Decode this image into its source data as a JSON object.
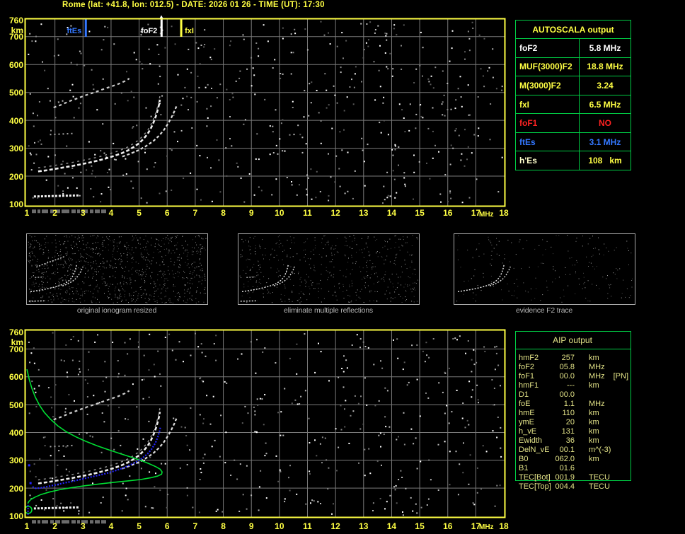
{
  "title": "Rome (lat: +41.8, lon: 012.5) - DATE: 2026 01 26 - TIME (UT): 17:30",
  "colors": {
    "axis_yellow": "#ffff44",
    "table_green": "#00cc44",
    "marker_blue": "#3377ff",
    "alarm_red": "#ff2222",
    "white": "#ffffff",
    "aip_pale_yellow": "#e4e488",
    "profile_green": "#00dd33",
    "restored_blue": "#2525ff",
    "grid_gray": "#7a7a7a",
    "caption_gray": "#b4b4b4"
  },
  "autoscala": {
    "header": "AUTOSCALA output",
    "rows": [
      {
        "label": "foF2",
        "value": "5.8 MHz",
        "color": "#ffffff"
      },
      {
        "label": "MUF(3000)F2",
        "value": "18.8 MHz",
        "color": "#ffff44"
      },
      {
        "label": "M(3000)F2",
        "value": "3.24",
        "color": "#ffff44"
      },
      {
        "label": "fxI",
        "value": "6.5 MHz",
        "color": "#ffff44"
      },
      {
        "label": "foF1",
        "value": "NO",
        "color": "#ff2222"
      },
      {
        "label": "ftEs",
        "value": "3.1 MHz",
        "color": "#3377ff"
      },
      {
        "label": "h'Es",
        "value": "108   km",
        "color": "#ffff44",
        "label_color": "#ffffcc"
      }
    ]
  },
  "aip": {
    "header": "AIP output",
    "rows": [
      {
        "label": "hmF2",
        "value": "257",
        "unit": "km",
        "extra": ""
      },
      {
        "label": "foF2",
        "value": "05.8",
        "unit": "MHz",
        "extra": ""
      },
      {
        "label": "foF1",
        "value": "00.0",
        "unit": "MHz",
        "extra": "[PN]"
      },
      {
        "label": "hmF1",
        "value": "---",
        "unit": "km",
        "extra": ""
      },
      {
        "label": "D1",
        "value": "00.0",
        "unit": "",
        "extra": ""
      },
      {
        "label": "foE",
        "value": "1.1",
        "unit": "MHz",
        "extra": ""
      },
      {
        "label": "hmE",
        "value": "110",
        "unit": "km",
        "extra": ""
      },
      {
        "label": "ymE",
        "value": "20",
        "unit": "km",
        "extra": ""
      },
      {
        "label": "h_vE",
        "value": "131",
        "unit": "km",
        "extra": ""
      },
      {
        "label": "Ewidth",
        "value": "36",
        "unit": "km",
        "extra": ""
      },
      {
        "label": "DelN_vE",
        "value": "00.1",
        "unit": "m^(-3)",
        "extra": ""
      },
      {
        "label": "B0",
        "value": "062.0",
        "unit": "km",
        "extra": ""
      },
      {
        "label": "B1",
        "value": "01.6",
        "unit": "",
        "extra": ""
      },
      {
        "label": "TEC[Bot]",
        "value": "001.9",
        "unit": "TECU",
        "extra": ""
      },
      {
        "label": "TEC[Top]",
        "value": "004.4",
        "unit": "TECU",
        "extra": ""
      }
    ]
  },
  "thumbnails": [
    {
      "caption": "original ionogram resized",
      "series": [
        "F-trace-ordinary",
        "F-trace-extraordinary",
        "multiple-reflection",
        "Es-trace",
        "Es-multiple-cluster"
      ],
      "noise": 1050,
      "seed": 111
    },
    {
      "caption": "eliminate multiple reflections",
      "series": [
        "F-trace-ordinary",
        "F-trace-extraordinary",
        "Es-trace",
        "Es-multiple-cluster"
      ],
      "noise": 520,
      "seed": 222
    },
    {
      "caption": "evidence F2 trace",
      "series": [
        "F-trace-ordinary",
        "F-trace-extraordinary"
      ],
      "noise": 200,
      "seed": 333
    }
  ],
  "chart_data": [
    {
      "type": "scatter",
      "name": "autoscaled ionogram with characteristic markers",
      "xlabel": "MHz",
      "ylabel": "km",
      "xlim": [
        1,
        18
      ],
      "ylim": [
        100,
        760
      ],
      "x_ticks": [
        "1",
        "2",
        "3",
        "4",
        "5",
        "6",
        "7",
        "8",
        "9",
        "10",
        "11",
        "12",
        "13",
        "14",
        "15",
        "16",
        "17",
        "18"
      ],
      "y_ticks": [
        760,
        700,
        600,
        500,
        400,
        300,
        200,
        100
      ],
      "grid": true,
      "noise_seed": 12345,
      "noise_count": 520,
      "markers": [
        {
          "label": "ftEs",
          "f": 3.1,
          "color": "#3377ff",
          "label_side": "left"
        },
        {
          "label": "foF2",
          "f": 5.8,
          "color": "#ffffff",
          "label_side": "left"
        },
        {
          "label": "fxI",
          "f": 6.5,
          "color": "#ffff44",
          "label_side": "right"
        }
      ],
      "series": [
        {
          "name": "F-trace-ordinary",
          "color": "#eeeeee",
          "points": [
            [
              1.4,
              217
            ],
            [
              1.7,
              221
            ],
            [
              2.0,
              226
            ],
            [
              2.3,
              231
            ],
            [
              2.6,
              236
            ],
            [
              2.9,
              242
            ],
            [
              3.2,
              248
            ],
            [
              3.5,
              255
            ],
            [
              3.8,
              263
            ],
            [
              4.1,
              272
            ],
            [
              4.35,
              281
            ],
            [
              4.6,
              292
            ],
            [
              4.8,
              304
            ],
            [
              5.0,
              318
            ],
            [
              5.15,
              333
            ],
            [
              5.3,
              351
            ],
            [
              5.42,
              372
            ],
            [
              5.52,
              394
            ],
            [
              5.6,
              416
            ],
            [
              5.66,
              437
            ],
            [
              5.71,
              457
            ],
            [
              5.74,
              474
            ]
          ]
        },
        {
          "name": "F-trace-extraordinary",
          "color": "#dddddd",
          "points": [
            [
              4.4,
              270
            ],
            [
              4.7,
              281
            ],
            [
              5.0,
              294
            ],
            [
              5.25,
              308
            ],
            [
              5.5,
              325
            ],
            [
              5.7,
              344
            ],
            [
              5.88,
              365
            ],
            [
              6.03,
              388
            ],
            [
              6.15,
              410
            ],
            [
              6.25,
              431
            ],
            [
              6.33,
              450
            ]
          ]
        },
        {
          "name": "multiple-reflection",
          "color": "#cccccc",
          "points": [
            [
              1.95,
              446
            ],
            [
              2.2,
              455
            ],
            [
              2.5,
              468
            ],
            [
              2.8,
              479
            ],
            [
              3.1,
              490
            ],
            [
              3.4,
              500
            ],
            [
              3.7,
              511
            ],
            [
              4.0,
              521
            ],
            [
              4.25,
              530
            ],
            [
              4.5,
              541
            ],
            [
              4.65,
              550
            ]
          ]
        },
        {
          "name": "Es-trace",
          "color": "#f0f0f0",
          "points": [
            [
              1.25,
              127
            ],
            [
              2.85,
              131
            ]
          ]
        },
        {
          "name": "Es-multiple-cluster",
          "color": "#aaaaaa",
          "points": [
            [
              1.82,
              349
            ],
            [
              2.64,
              353
            ]
          ]
        }
      ]
    },
    {
      "type": "scatter",
      "name": "ionogram with restored trace and electron density profile (includes series of chart 0)",
      "xlabel": "MHz",
      "ylabel": "km",
      "xlim": [
        1,
        18
      ],
      "ylim": [
        100,
        760
      ],
      "x_ticks": [
        "1",
        "2",
        "3",
        "4",
        "5",
        "6",
        "7",
        "8",
        "9",
        "10",
        "11",
        "12",
        "13",
        "14",
        "15",
        "16",
        "17",
        "18"
      ],
      "y_ticks": [
        760,
        700,
        600,
        500,
        400,
        300,
        200,
        100
      ],
      "grid": true,
      "noise_seed": 67890,
      "noise_count": 480,
      "series": [
        {
          "name": "electron-density-profile",
          "color": "#00dd33",
          "points": [
            [
              1.0,
              627
            ],
            [
              1.08,
              592
            ],
            [
              1.18,
              558
            ],
            [
              1.3,
              527
            ],
            [
              1.45,
              498
            ],
            [
              1.62,
              472
            ],
            [
              1.85,
              447
            ],
            [
              2.1,
              424
            ],
            [
              2.4,
              403
            ],
            [
              2.75,
              384
            ],
            [
              3.1,
              368
            ],
            [
              3.5,
              352
            ],
            [
              3.9,
              338
            ],
            [
              4.3,
              325
            ],
            [
              4.7,
              312
            ],
            [
              5.05,
              300
            ],
            [
              5.35,
              288
            ],
            [
              5.6,
              277
            ],
            [
              5.75,
              268
            ],
            [
              5.82,
              258
            ],
            [
              5.8,
              250
            ],
            [
              5.65,
              243
            ],
            [
              5.4,
              237
            ],
            [
              5.05,
              231
            ],
            [
              4.6,
              226
            ],
            [
              4.1,
              221
            ],
            [
              3.6,
              215
            ],
            [
              3.1,
              209
            ],
            [
              2.6,
              202
            ],
            [
              2.15,
              194
            ],
            [
              1.8,
              186
            ],
            [
              1.5,
              177
            ],
            [
              1.3,
              168
            ],
            [
              1.15,
              160
            ],
            [
              1.07,
              152
            ],
            [
              1.03,
              145
            ]
          ]
        },
        {
          "name": "E-layer-hook",
          "color": "#00dd33",
          "circle": [
            1.05,
            122
          ],
          "r": 5
        },
        {
          "name": "restored-trace",
          "color": "#2525ff",
          "points": [
            [
              1.2,
              205
            ],
            [
              1.32,
              199
            ],
            [
              1.5,
              201
            ],
            [
              1.75,
              206
            ],
            [
              2.0,
              211
            ],
            [
              2.3,
              218
            ],
            [
              2.6,
              224
            ],
            [
              2.9,
              231
            ],
            [
              3.2,
              238
            ],
            [
              3.5,
              245
            ],
            [
              3.8,
              252
            ],
            [
              4.1,
              261
            ],
            [
              4.4,
              271
            ],
            [
              4.65,
              282
            ],
            [
              4.9,
              294
            ],
            [
              5.1,
              307
            ],
            [
              5.3,
              323
            ],
            [
              5.45,
              341
            ],
            [
              5.58,
              362
            ],
            [
              5.67,
              385
            ],
            [
              5.73,
              405
            ],
            [
              5.77,
              422
            ]
          ]
        },
        {
          "name": "restored-trace-stray-points",
          "color": "#2525ff",
          "dots": [
            [
              1.08,
              282
            ],
            [
              1.13,
              218
            ]
          ]
        },
        {
          "name": "E-restored-vertical",
          "color": "#2525ff",
          "points": [
            [
              1.04,
              104
            ],
            [
              1.04,
              145
            ]
          ]
        }
      ]
    }
  ]
}
